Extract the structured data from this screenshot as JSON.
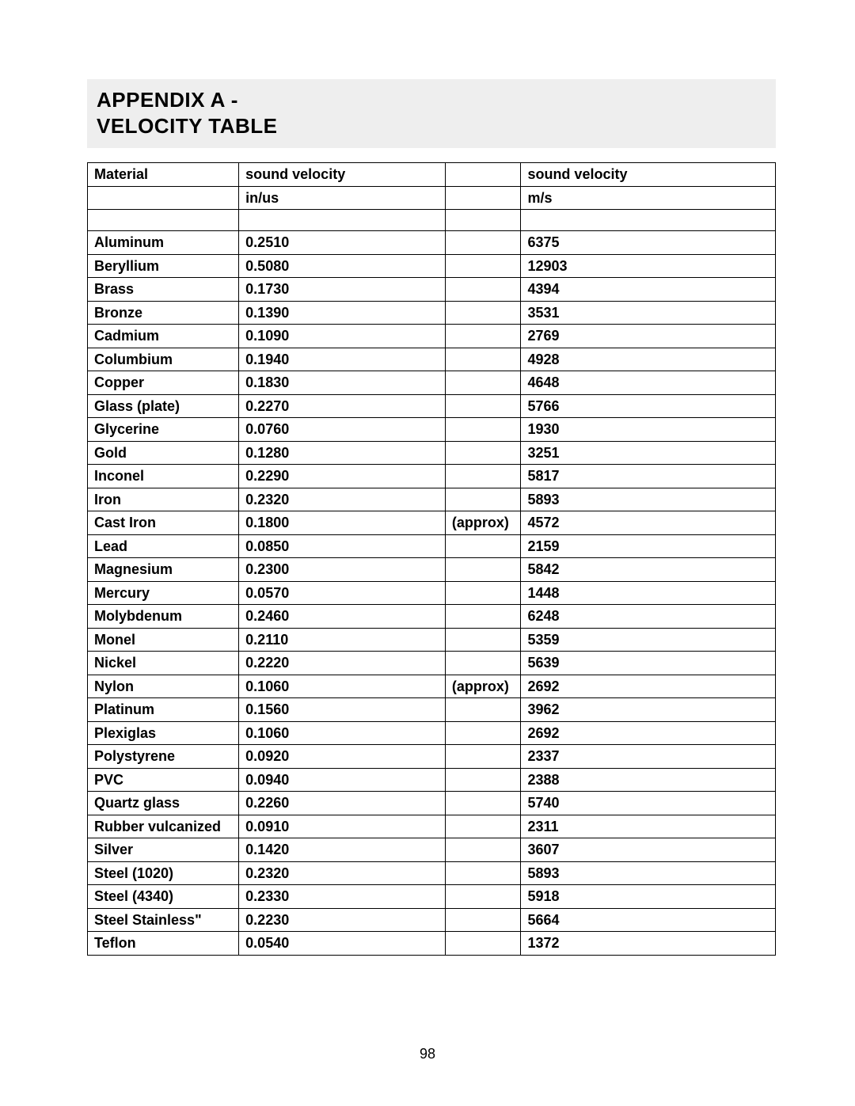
{
  "title": {
    "line1": "APPENDIX A -",
    "line2": "VELOCITY TABLE"
  },
  "columns": {
    "material": "Material",
    "inus_line1": "sound velocity",
    "inus_line2": "in/us",
    "ms_line1": "sound velocity",
    "ms_line2": "m/s"
  },
  "rows": [
    {
      "material": "Aluminum",
      "in_us": "0.2510",
      "note": "",
      "m_s": "6375"
    },
    {
      "material": "Beryllium",
      "in_us": "0.5080",
      "note": "",
      "m_s": "12903"
    },
    {
      "material": "Brass",
      "in_us": "0.1730",
      "note": "",
      "m_s": "4394"
    },
    {
      "material": "Bronze",
      "in_us": "0.1390",
      "note": "",
      "m_s": "3531"
    },
    {
      "material": "Cadmium",
      "in_us": "0.1090",
      "note": "",
      "m_s": "2769"
    },
    {
      "material": "Columbium",
      "in_us": "0.1940",
      "note": "",
      "m_s": "4928"
    },
    {
      "material": "Copper",
      "in_us": "0.1830",
      "note": "",
      "m_s": "4648"
    },
    {
      "material": "Glass (plate)",
      "in_us": "0.2270",
      "note": "",
      "m_s": "5766"
    },
    {
      "material": "Glycerine",
      "in_us": "0.0760",
      "note": "",
      "m_s": "1930"
    },
    {
      "material": "Gold",
      "in_us": "0.1280",
      "note": "",
      "m_s": "3251"
    },
    {
      "material": "Inconel",
      "in_us": "0.2290",
      "note": "",
      "m_s": "5817"
    },
    {
      "material": "Iron",
      "in_us": "0.2320",
      "note": "",
      "m_s": "5893"
    },
    {
      "material": "Cast Iron",
      "in_us": "0.1800",
      "note": "(approx)",
      "m_s": "4572"
    },
    {
      "material": "Lead",
      "in_us": "0.0850",
      "note": "",
      "m_s": "2159"
    },
    {
      "material": "Magnesium",
      "in_us": "0.2300",
      "note": "",
      "m_s": "5842"
    },
    {
      "material": "Mercury",
      "in_us": "0.0570",
      "note": "",
      "m_s": "1448"
    },
    {
      "material": "Molybdenum",
      "in_us": "0.2460",
      "note": "",
      "m_s": "6248"
    },
    {
      "material": "Monel",
      "in_us": "0.2110",
      "note": "",
      "m_s": "5359"
    },
    {
      "material": "Nickel",
      "in_us": "0.2220",
      "note": "",
      "m_s": "5639"
    },
    {
      "material": "Nylon",
      "in_us": "0.1060",
      "note": "(approx)",
      "m_s": "2692"
    },
    {
      "material": "Platinum",
      "in_us": "0.1560",
      "note": "",
      "m_s": "3962"
    },
    {
      "material": "Plexiglas",
      "in_us": "0.1060",
      "note": "",
      "m_s": "2692"
    },
    {
      "material": "Polystyrene",
      "in_us": "0.0920",
      "note": "",
      "m_s": "2337"
    },
    {
      "material": "PVC",
      "in_us": "0.0940",
      "note": "",
      "m_s": "2388"
    },
    {
      "material": "Quartz glass",
      "in_us": "0.2260",
      "note": "",
      "m_s": "5740"
    },
    {
      "material": "Rubber vulcanized",
      "in_us": "0.0910",
      "note": "",
      "m_s": "2311"
    },
    {
      "material": "Silver",
      "in_us": "0.1420",
      "note": "",
      "m_s": "3607"
    },
    {
      "material": "Steel (1020)",
      "in_us": "0.2320",
      "note": "",
      "m_s": "5893"
    },
    {
      "material": "Steel (4340)",
      "in_us": "0.2330",
      "note": "",
      "m_s": "5918"
    },
    {
      "material": "Steel Stainless\"",
      "in_us": "0.2230",
      "note": "",
      "m_s": "5664"
    },
    {
      "material": "Teflon",
      "in_us": "0.0540",
      "note": "",
      "m_s": "1372"
    }
  ],
  "page_number": "98",
  "style": {
    "background_color": "#ffffff",
    "title_bg": "#eeeeee",
    "text_color": "#000000",
    "border_color": "#000000",
    "font_family": "Arial, Helvetica, sans-serif",
    "title_fontsize_pt": 20,
    "body_fontsize_pt": 14,
    "column_widths_pct": [
      22,
      30,
      11,
      37
    ]
  }
}
